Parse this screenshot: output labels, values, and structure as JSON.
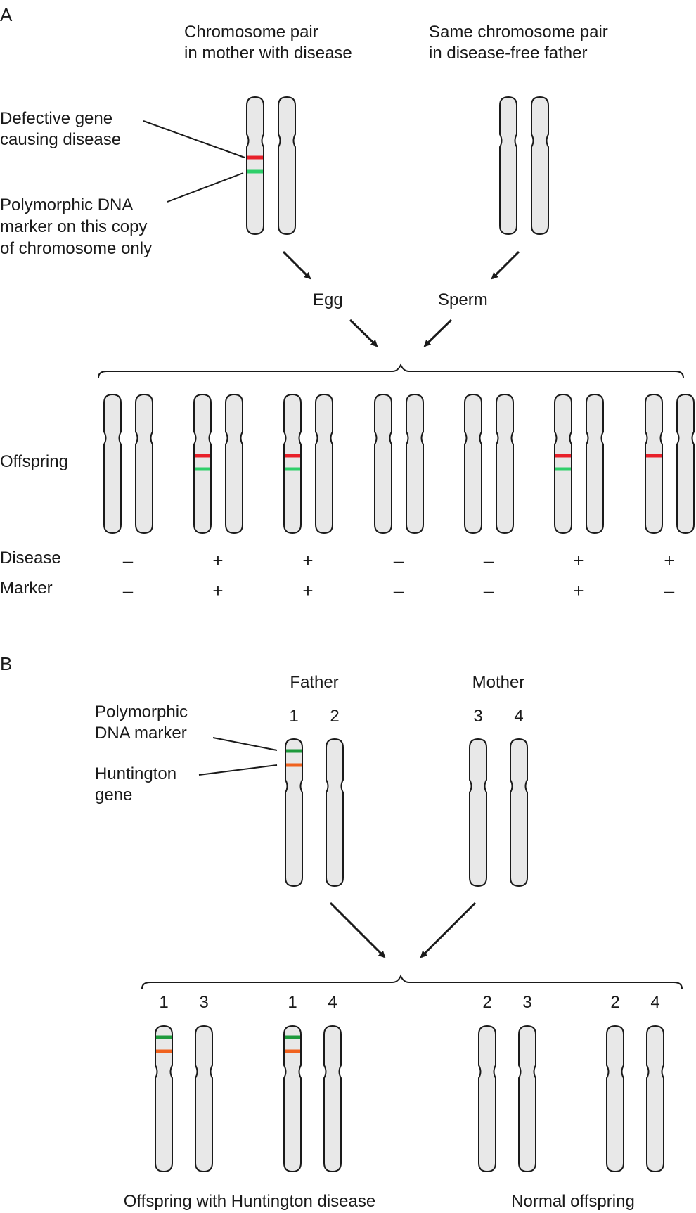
{
  "colors": {
    "chromosome_fill": "#e8e8e8",
    "outline": "#1a1a1a",
    "disease_gene": "#e8202a",
    "marker_a": "#2fcf6a",
    "marker_b": "#1e9a3c",
    "huntington_gene": "#f0621e"
  },
  "panel_a": {
    "letter": "A",
    "mother_caption": [
      "Chromosome pair",
      "in mother with disease"
    ],
    "father_caption": [
      "Same chromosome pair",
      "in disease-free father"
    ],
    "defective_gene_label": [
      "Defective gene",
      "causing disease"
    ],
    "marker_label": [
      "Polymorphic DNA",
      "marker on this copy",
      "of chromosome only"
    ],
    "egg_label": "Egg",
    "sperm_label": "Sperm",
    "offspring_label": "Offspring",
    "disease_row_label": "Disease",
    "marker_row_label": "Marker",
    "offspring": [
      {
        "disease": "–",
        "marker": "–",
        "has_gene": false,
        "has_marker": false
      },
      {
        "disease": "+",
        "marker": "+",
        "has_gene": true,
        "has_marker": true
      },
      {
        "disease": "+",
        "marker": "+",
        "has_gene": true,
        "has_marker": true
      },
      {
        "disease": "–",
        "marker": "–",
        "has_gene": false,
        "has_marker": false
      },
      {
        "disease": "–",
        "marker": "–",
        "has_gene": false,
        "has_marker": false
      },
      {
        "disease": "+",
        "marker": "+",
        "has_gene": true,
        "has_marker": true
      },
      {
        "disease": "+",
        "marker": "–",
        "has_gene": true,
        "has_marker": false
      }
    ]
  },
  "panel_b": {
    "letter": "B",
    "father_label": "Father",
    "mother_label": "Mother",
    "father_chromosomes": [
      "1",
      "2"
    ],
    "mother_chromosomes": [
      "3",
      "4"
    ],
    "marker_label": [
      "Polymorphic",
      "DNA marker"
    ],
    "huntington_label": [
      "Huntington",
      "gene"
    ],
    "offspring": [
      {
        "numbers": [
          "1",
          "3"
        ],
        "has_marker": true
      },
      {
        "numbers": [
          "1",
          "4"
        ],
        "has_marker": true
      },
      {
        "numbers": [
          "2",
          "3"
        ],
        "has_marker": false
      },
      {
        "numbers": [
          "2",
          "4"
        ],
        "has_marker": false
      }
    ],
    "affected_caption": "Offspring with Huntington disease",
    "normal_caption": "Normal offspring"
  }
}
